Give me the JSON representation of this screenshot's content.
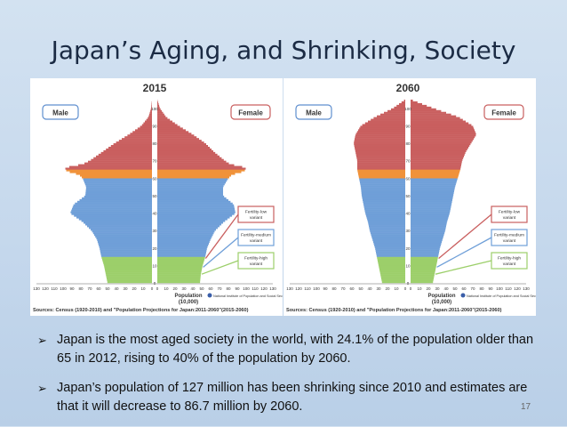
{
  "slide": {
    "title": "Japan’s Aging, and Shrinking, Society",
    "bullets": [
      "Japan is the most aged society in the world, with 24.1% of the population older than 65 in 2012, rising to 40% of the population by 2060.",
      "Japan’s population of 127 million has been shrinking since 2010 and estimates are that it will decrease to 86.7 million by 2060."
    ],
    "bullet_marker": "➢",
    "page_number": "17"
  },
  "colors": {
    "age_65_plus": "#c95f5f",
    "age_60_64": "#f0923a",
    "age_15_59": "#6f9fd8",
    "age_0_14": "#9ccf6a",
    "male_label_border": "#5f8fcf",
    "female_label_border": "#c95f5f"
  },
  "chart_data": [
    {
      "type": "population-pyramid",
      "title": "2015",
      "left_label": "Male",
      "right_label": "Female",
      "xlabel": "Population\n(10,000)",
      "x_ticks": [
        "130",
        "120",
        "110",
        "100",
        "90",
        "80",
        "70",
        "60",
        "50",
        "40",
        "30",
        "20",
        "10",
        "0",
        "0",
        "10",
        "20",
        "30",
        "40",
        "50",
        "60",
        "70",
        "80",
        "90",
        "100",
        "110",
        "120",
        "130"
      ],
      "y_ticks": [
        "0",
        "10",
        "20",
        "30",
        "40",
        "50",
        "60",
        "70",
        "80",
        "90",
        "100"
      ],
      "x_max": 130,
      "y_max": 105,
      "ages": [
        0,
        5,
        10,
        15,
        20,
        25,
        30,
        35,
        40,
        45,
        50,
        55,
        60,
        62,
        64,
        66,
        68,
        70,
        75,
        80,
        85,
        90,
        95,
        100,
        105
      ],
      "male": [
        50,
        52,
        54,
        57,
        59,
        62,
        68,
        78,
        92,
        88,
        75,
        74,
        78,
        82,
        96,
        98,
        78,
        70,
        56,
        42,
        26,
        12,
        4,
        1,
        0
      ],
      "female": [
        48,
        49,
        51,
        54,
        56,
        60,
        65,
        75,
        88,
        86,
        74,
        74,
        80,
        84,
        98,
        100,
        82,
        76,
        64,
        54,
        40,
        24,
        10,
        3,
        0
      ],
      "variants": [
        "Fertility-low variant",
        "Fertility-medium variant",
        "Fertility-high variant"
      ],
      "source": "Sources: Census (1920-2010) and \"Population Projections for Japan:2011-2060\"(2015-2060)",
      "institute": "National Institute of Population and Social Security Research"
    },
    {
      "type": "population-pyramid",
      "title": "2060",
      "left_label": "Male",
      "right_label": "Female",
      "xlabel": "Population\n(10,000)",
      "x_ticks": [
        "130",
        "120",
        "110",
        "100",
        "90",
        "80",
        "70",
        "60",
        "50",
        "40",
        "30",
        "20",
        "10",
        "0",
        "0",
        "10",
        "20",
        "30",
        "40",
        "50",
        "60",
        "70",
        "80",
        "90",
        "100",
        "110",
        "120",
        "130"
      ],
      "y_ticks": [
        "0",
        "10",
        "20",
        "30",
        "40",
        "50",
        "60",
        "70",
        "80",
        "90",
        "100"
      ],
      "x_max": 130,
      "y_max": 105,
      "ages": [
        0,
        5,
        10,
        15,
        20,
        25,
        30,
        35,
        40,
        45,
        50,
        55,
        60,
        65,
        70,
        75,
        80,
        85,
        90,
        95,
        100,
        105
      ],
      "male": [
        26,
        28,
        30,
        32,
        34,
        37,
        40,
        42,
        45,
        47,
        49,
        50,
        52,
        54,
        54,
        56,
        58,
        56,
        50,
        34,
        14,
        0
      ],
      "female": [
        25,
        27,
        29,
        31,
        33,
        36,
        39,
        41,
        44,
        46,
        48,
        50,
        53,
        56,
        58,
        62,
        68,
        74,
        70,
        54,
        26,
        0
      ],
      "variants": [
        "Fertility-low variant",
        "Fertility-medium variant",
        "Fertility-high variant"
      ],
      "source": "Sources: Census (1920-2010) and \"Population Projections for Japan:2011-2060\"(2015-2060)",
      "institute": "National Institute of Population and Social Security Research"
    }
  ]
}
